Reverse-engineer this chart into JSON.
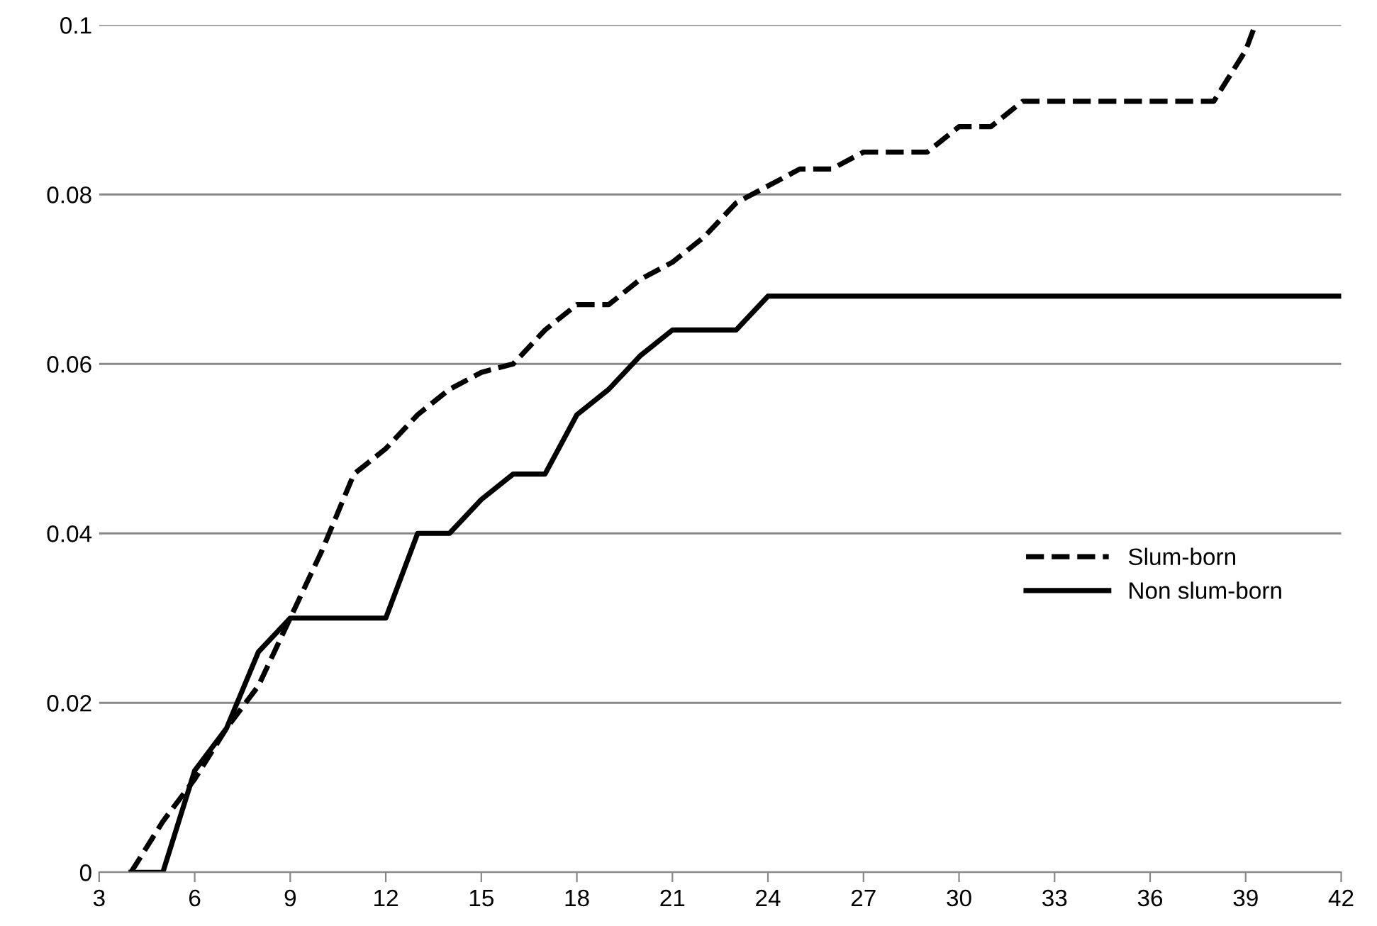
{
  "chart_data": {
    "type": "line",
    "xlim": [
      3,
      42
    ],
    "xticks": [
      3,
      6,
      9,
      12,
      15,
      18,
      21,
      24,
      27,
      30,
      33,
      36,
      39,
      42
    ],
    "ylim": [
      0,
      0.1
    ],
    "yticks": [
      {
        "value": 0,
        "label": "0"
      },
      {
        "value": 0.02,
        "label": "0.02"
      },
      {
        "value": 0.04,
        "label": "0.04"
      },
      {
        "value": 0.06,
        "label": "0.06"
      },
      {
        "value": 0.08,
        "label": "0.08"
      },
      {
        "value": 0.1,
        "label": "0.1"
      }
    ],
    "grid": "y",
    "legend": "right",
    "marker": "none",
    "series": [
      {
        "name": "Slum-born",
        "color": "#000000",
        "line_style": "dashed",
        "x": [
          4,
          5,
          6,
          7,
          8,
          9,
          10,
          11,
          12,
          13,
          14,
          15,
          16,
          17,
          18,
          19,
          20,
          21,
          22,
          23,
          24,
          25,
          26,
          27,
          28,
          29,
          30,
          31,
          32,
          33,
          34,
          35,
          36,
          37,
          38,
          39,
          39.3
        ],
        "values": [
          0,
          0.006,
          0.011,
          0.017,
          0.022,
          0.03,
          0.038,
          0.047,
          0.05,
          0.054,
          0.057,
          0.059,
          0.06,
          0.064,
          0.067,
          0.067,
          0.07,
          0.072,
          0.075,
          0.079,
          0.081,
          0.083,
          0.083,
          0.085,
          0.085,
          0.085,
          0.088,
          0.088,
          0.091,
          0.091,
          0.091,
          0.091,
          0.091,
          0.091,
          0.091,
          0.097,
          0.1
        ]
      },
      {
        "name": "Non slum-born",
        "color": "#000000",
        "line_style": "solid",
        "x": [
          4,
          5,
          6,
          7,
          8,
          9,
          10,
          11,
          12,
          13,
          14,
          15,
          16,
          17,
          18,
          19,
          20,
          21,
          22,
          23,
          24,
          42
        ],
        "values": [
          0,
          0,
          0.012,
          0.017,
          0.026,
          0.03,
          0.03,
          0.03,
          0.03,
          0.04,
          0.04,
          0.044,
          0.047,
          0.047,
          0.054,
          0.057,
          0.061,
          0.064,
          0.064,
          0.064,
          0.068,
          0.068
        ]
      }
    ]
  }
}
